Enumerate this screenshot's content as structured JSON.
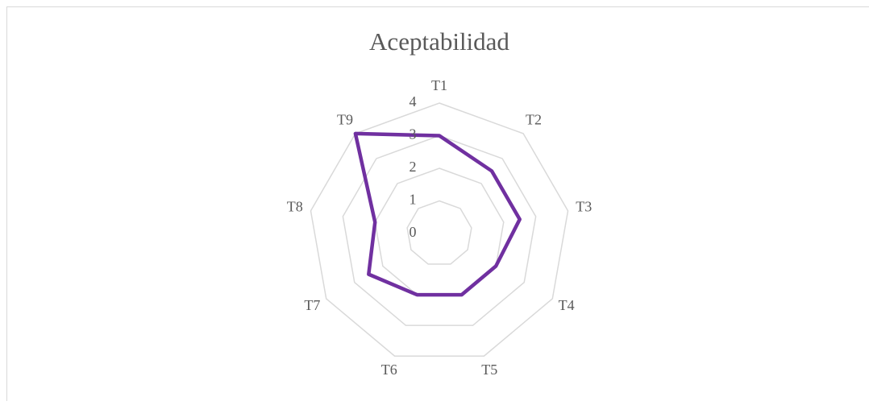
{
  "chart_data": {
    "type": "radar",
    "title": "Aceptabilidad",
    "categories": [
      "T1",
      "T2",
      "T3",
      "T4",
      "T5",
      "T6",
      "T7",
      "T8",
      "T9"
    ],
    "series": [
      {
        "color": "#7030a0",
        "values": [
          3,
          2.5,
          2.5,
          2,
          2,
          2,
          2.5,
          2,
          4
        ]
      }
    ],
    "ylim": [
      0,
      4
    ],
    "yticks": [
      0,
      1,
      2,
      3,
      4
    ],
    "grid": true
  }
}
